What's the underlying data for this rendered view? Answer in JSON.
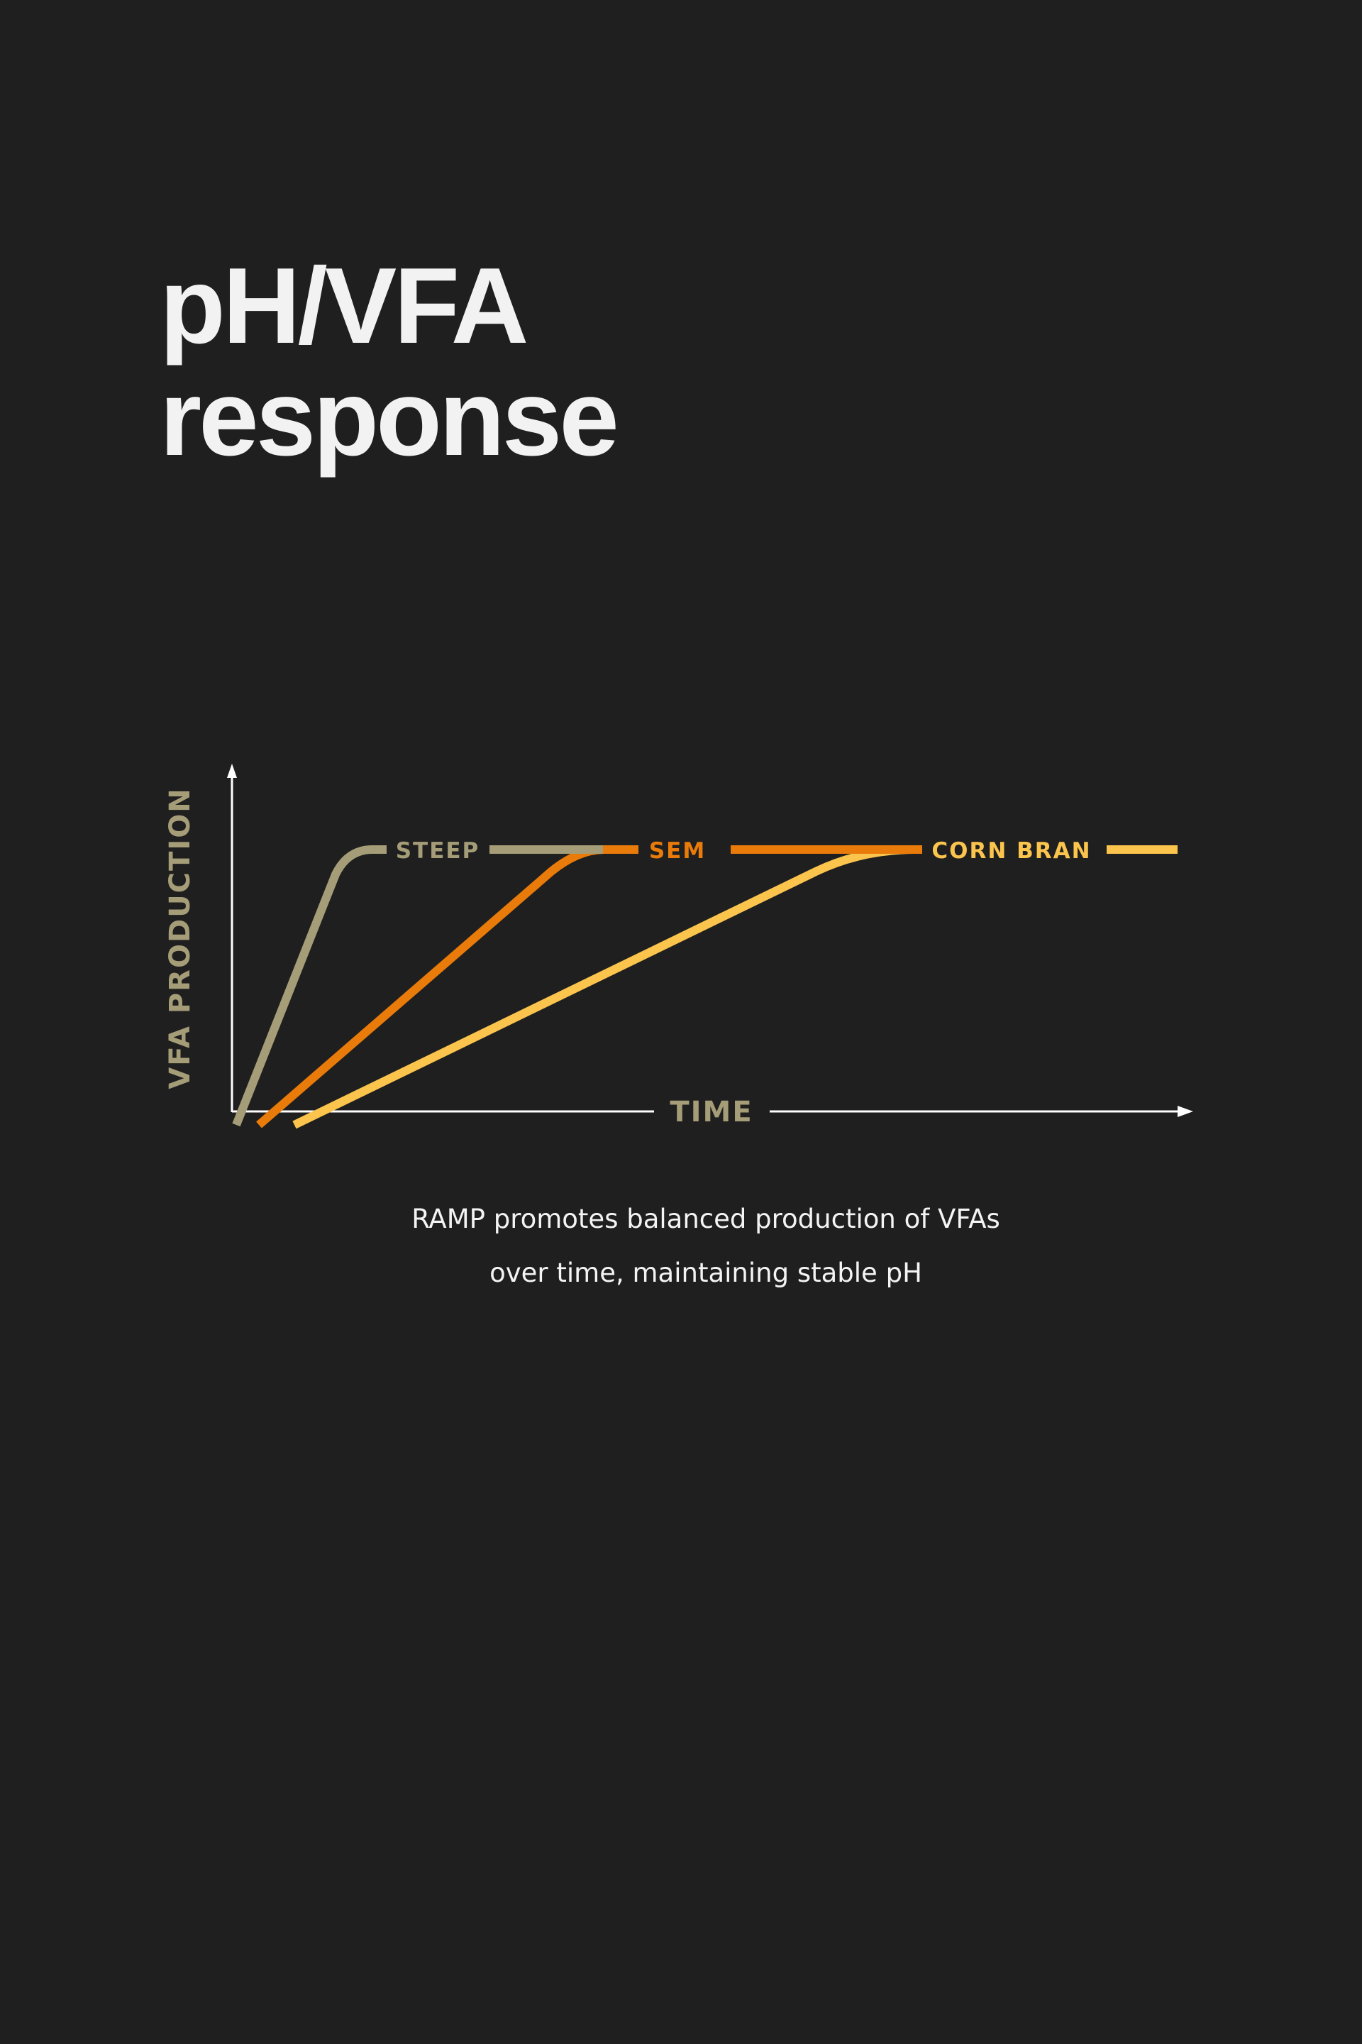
{
  "page": {
    "title_line1": "pH/VFA",
    "title_line2": "response",
    "caption_line1": "RAMP promotes balanced production of VFAs",
    "caption_line2": "over time, maintaining stable pH"
  },
  "colors": {
    "background": "#1f1f1f",
    "axis": "#ffffff",
    "axis_label": "#a59d77",
    "steep": "#a59d77",
    "sem": "#e97b0b",
    "corn_bran": "#fbc44d"
  },
  "chart_data": {
    "type": "line",
    "title": "",
    "xlabel": "TIME",
    "ylabel": "VFA PRODUCTION",
    "grid": false,
    "legend": "inline-labels-at-top",
    "series": [
      {
        "name": "STEEP",
        "color": "#a59d77"
      },
      {
        "name": "SEM",
        "color": "#e97b0b"
      },
      {
        "name": "CORN BRAN",
        "color": "#fbc44d"
      }
    ]
  }
}
